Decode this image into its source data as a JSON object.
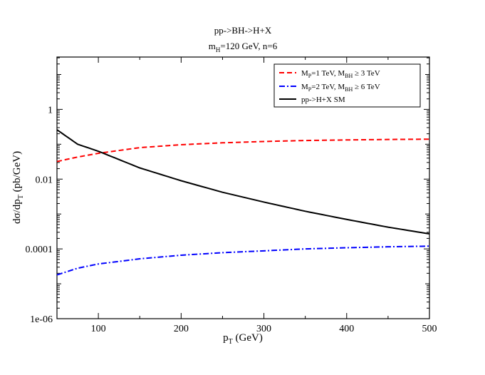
{
  "chart_data": {
    "type": "line",
    "title_line1": "pp->BH->H+X",
    "title_line2": {
      "m": "m",
      "sub": "H",
      "rest": "=120 GeV, n=6"
    },
    "xlabel": {
      "main": "p",
      "sub": "T",
      "rest": " (GeV)"
    },
    "ylabel": {
      "a": "dσ/dp",
      "sub": "T",
      "b": " (pb/GeV)"
    },
    "xlim": [
      50,
      500
    ],
    "ylim_log10": [
      -6,
      1.5
    ],
    "x_ticks": [
      100,
      200,
      300,
      400,
      500
    ],
    "x_tick_labels": [
      "100",
      "200",
      "300",
      "400",
      "500"
    ],
    "y_ticks": [
      1e-06,
      0.0001,
      0.01,
      1
    ],
    "y_tick_labels": [
      "1e-06",
      "0.0001",
      "0.01",
      "1"
    ],
    "series": [
      {
        "name": "MP=1 TeV, MBH >= 3 TeV",
        "legend": {
          "M": "M",
          "sub1": "P",
          "t1": "=1 TeV,  M",
          "sub2": "BH",
          "t2": " ≥ 3 TeV"
        },
        "color": "#ff0000",
        "style": "dashed",
        "x": [
          50,
          75,
          100,
          150,
          200,
          250,
          300,
          350,
          400,
          450,
          500
        ],
        "y": [
          0.032,
          0.043,
          0.055,
          0.08,
          0.097,
          0.11,
          0.12,
          0.128,
          0.133,
          0.137,
          0.14
        ]
      },
      {
        "name": "MP=2 TeV, MBH >= 6 TeV",
        "legend": {
          "M": "M",
          "sub1": "P",
          "t1": "=2 TeV,  M",
          "sub2": "BH",
          "t2": " ≥ 6 TeV"
        },
        "color": "#0000ff",
        "style": "dashdot",
        "x": [
          50,
          75,
          100,
          150,
          200,
          250,
          300,
          350,
          400,
          450,
          500
        ],
        "y": [
          1.8e-05,
          2.8e-05,
          3.7e-05,
          5.2e-05,
          6.6e-05,
          7.8e-05,
          8.8e-05,
          0.0001,
          0.000108,
          0.000115,
          0.00012
        ]
      },
      {
        "name": "pp->H+X  SM",
        "legend": {
          "text": "pp->H+X  SM"
        },
        "color": "#000000",
        "style": "solid",
        "x": [
          50,
          75,
          100,
          150,
          200,
          250,
          300,
          350,
          400,
          450,
          500
        ],
        "y": [
          0.26,
          0.1,
          0.063,
          0.021,
          0.009,
          0.0042,
          0.0022,
          0.0012,
          0.0007,
          0.00042,
          0.00027
        ]
      }
    ]
  }
}
